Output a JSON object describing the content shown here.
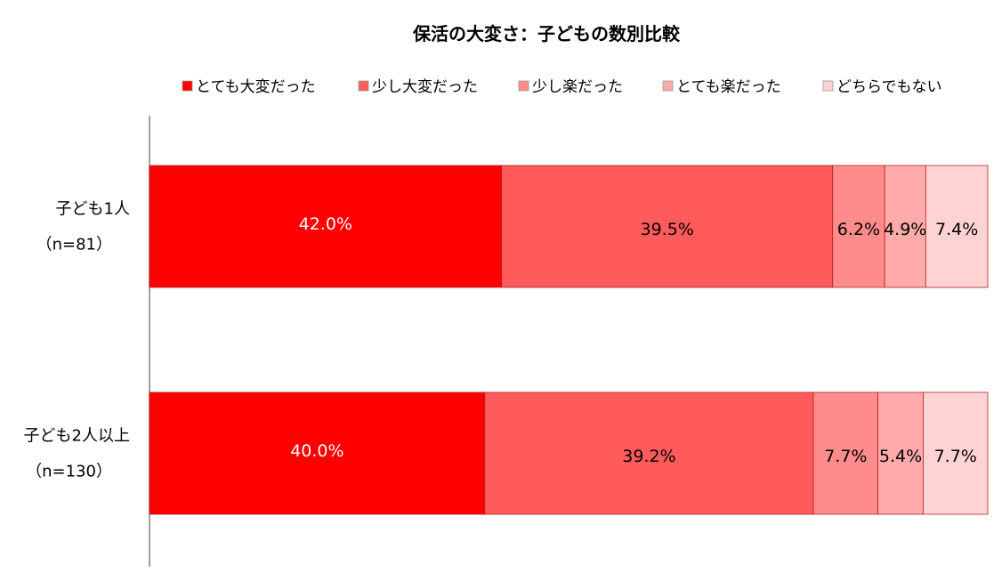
{
  "chart_data": {
    "type": "bar",
    "orientation": "horizontal",
    "stacked": true,
    "percent_stacked": true,
    "title": "保活の大変さ：子どもの数別比較",
    "legend_position": "top",
    "grid": false,
    "xlim": [
      0,
      100
    ],
    "categories": [
      {
        "label": "子ども1人",
        "sub": "（n=81）"
      },
      {
        "label": "子ども2人以上",
        "sub": "（n=130）"
      }
    ],
    "series": [
      {
        "name": "とても大変だった",
        "color": "#ff0000",
        "text_color": "#ffffff",
        "values": [
          42.0,
          40.0
        ],
        "labels": [
          "42.0%",
          "40.0%"
        ]
      },
      {
        "name": "少し大変だった",
        "color": "#ff5b5b",
        "text_color": "#000000",
        "values": [
          39.5,
          39.2
        ],
        "labels": [
          "39.5%",
          "39.2%"
        ]
      },
      {
        "name": "少し楽だった",
        "color": "#ff8c8c",
        "text_color": "#000000",
        "values": [
          6.2,
          7.7
        ],
        "labels": [
          "6.2%",
          "7.7%"
        ]
      },
      {
        "name": "とても楽だった",
        "color": "#ffabab",
        "text_color": "#000000",
        "values": [
          4.9,
          5.4
        ],
        "labels": [
          "4.9%",
          "5.4%"
        ]
      },
      {
        "name": "どちらでもない",
        "color": "#ffd3d3",
        "text_color": "#000000",
        "values": [
          7.4,
          7.7
        ],
        "labels": [
          "7.4%",
          "7.7%"
        ]
      }
    ]
  }
}
